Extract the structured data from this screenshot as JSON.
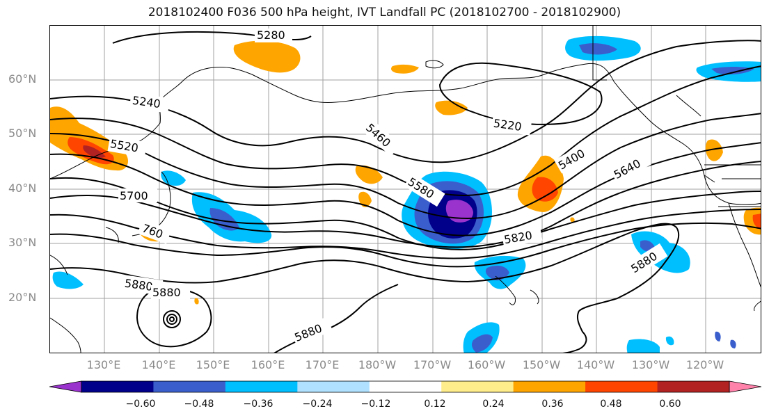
{
  "title": "2018102400 F036 500 hPa height, IVT Landfall PC (2018102700 - 2018102900)",
  "lat_labels": [
    "60°N",
    "50°N",
    "40°N",
    "30°N",
    "20°N"
  ],
  "lon_labels": [
    "130°E",
    "140°E",
    "150°E",
    "160°E",
    "170°E",
    "180°W",
    "170°W",
    "160°W",
    "150°W",
    "140°W",
    "130°W",
    "120°W"
  ],
  "contour_labels": {
    "c5280": "5280",
    "c5240": "5240",
    "c5520": "5520",
    "c5460": "5460",
    "c5220": "5220",
    "c5400": "5400",
    "c5640": "5640",
    "c5580": "5580",
    "c5700": "5700",
    "c5760": "760",
    "c5820": "5820",
    "c5880a": "5880",
    "c5880b": "5880",
    "c5880c": "5880",
    "c5880d": "5880"
  },
  "colorbar": {
    "ticks": [
      "−0.60",
      "−0.48",
      "−0.36",
      "−0.24",
      "−0.12",
      "0.12",
      "0.24",
      "0.36",
      "0.48",
      "0.60"
    ],
    "colors": [
      "#9a32cd",
      "#00008b",
      "#3a5fcd",
      "#00bfff",
      "#b0e2ff",
      "#ffffff",
      "#ffec8b",
      "#ffa500",
      "#ff4500",
      "#b22222",
      "#ff82ab"
    ]
  }
}
